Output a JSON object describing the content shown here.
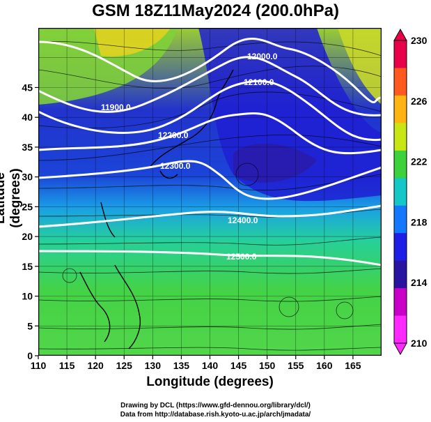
{
  "title": "GSM 18Z11May2024 (200.0hPa)",
  "xlabel": "Longitude (degrees)",
  "ylabel": "Latitude  (degrees)",
  "credits": {
    "line1": "Drawing by DCL (https://www.gfd-dennou.org/library/dcl/)",
    "line2": "Data from http://database.rish.kyoto-u.ac.jp/arch/jmadata/"
  },
  "xticks": [
    "110",
    "115",
    "120",
    "125",
    "130",
    "135",
    "140",
    "145",
    "150",
    "155",
    "160",
    "165"
  ],
  "yticks": [
    "0",
    "5",
    "10",
    "15",
    "20",
    "25",
    "30",
    "35",
    "40",
    "45"
  ],
  "colorbar": {
    "ticks": [
      "230",
      "226",
      "222",
      "218",
      "214",
      "210"
    ],
    "colors": [
      "#e8004a",
      "#ff5a1e",
      "#ffb414",
      "#c8e614",
      "#3cd23c",
      "#14c8c8",
      "#1478ff",
      "#1e1ee6",
      "#2814a0",
      "#c800c8",
      "#ff28ff"
    ]
  },
  "contours": [
    {
      "label": "11900.0"
    },
    {
      "label": "12000.0"
    },
    {
      "label": "12100.0"
    },
    {
      "label": "12200.0"
    },
    {
      "label": "12300.0"
    },
    {
      "label": "12400.0"
    },
    {
      "label": "12500.0"
    }
  ],
  "colors": {
    "frame": "#000000",
    "contour": "#ffffff"
  }
}
